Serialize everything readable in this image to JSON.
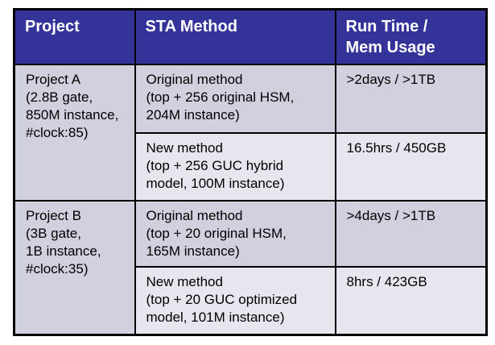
{
  "page": {
    "background_color": "#ffffff"
  },
  "table": {
    "header_bg_color": "#333399",
    "header_text_color": "#ffffff",
    "row_dark_color": "#d0d0df",
    "row_light_color": "#e6e6ef",
    "border_color": "#000000",
    "body_text_color": "#000000",
    "columns": [
      {
        "label": "Project"
      },
      {
        "label": "STA Method"
      },
      {
        "label": "Run Time /\nMem Usage"
      }
    ],
    "projects": [
      {
        "project": "Project A\n(2.8B gate,\n850M instance,\n#clock:85)",
        "entries": [
          {
            "method": "Original method\n(top + 256 original HSM,\n204M instance)",
            "runtime": ">2days / >1TB"
          },
          {
            "method": "New method\n(top + 256 GUC hybrid\nmodel, 100M instance)",
            "runtime": "16.5hrs / 450GB"
          }
        ]
      },
      {
        "project": "Project B\n(3B gate,\n1B instance,\n#clock:35)",
        "entries": [
          {
            "method": "Original method\n(top + 20 original HSM,\n165M instance)",
            "runtime": ">4days / >1TB"
          },
          {
            "method": "New method\n(top + 20 GUC optimized\nmodel, 101M instance)",
            "runtime": "8hrs / 423GB"
          }
        ]
      }
    ]
  }
}
